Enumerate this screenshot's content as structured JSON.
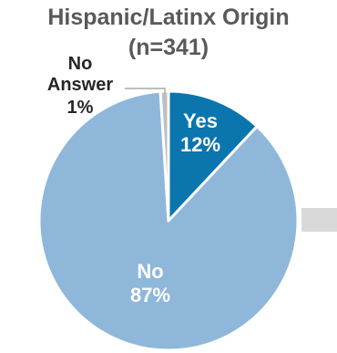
{
  "chart_data": {
    "type": "pie",
    "title": "Hispanic/Latinx Origin",
    "subtitle": "(n=341)",
    "slices": [
      {
        "label": "Yes",
        "percent_label": "12%",
        "value": 12,
        "color": "#0b75ad"
      },
      {
        "label": "No",
        "percent_label": "87%",
        "value": 87,
        "color": "#8fb7da"
      },
      {
        "label_lines": [
          "No",
          "Answer"
        ],
        "percent_label": "1%",
        "value": 1,
        "color": "#bfbfbf"
      }
    ]
  }
}
